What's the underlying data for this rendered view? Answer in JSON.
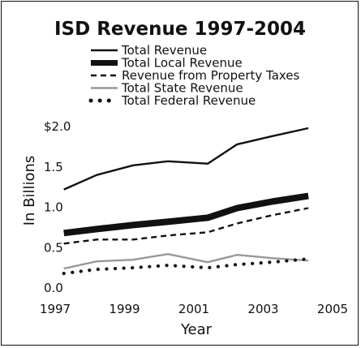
{
  "chart_data": {
    "type": "line",
    "title": "ISD Revenue 1997-2004",
    "xlabel": "Year",
    "ylabel": "In Billions",
    "xlim": [
      1997,
      2005
    ],
    "ylim": [
      0,
      2.0
    ],
    "x_ticks": [
      "1997",
      "1999",
      "2001",
      "2003",
      "2005"
    ],
    "x_tick_values": [
      1997,
      1999,
      2001,
      2003,
      2005
    ],
    "y_ticks": [
      "0.0",
      "0.5",
      "1.0",
      "1.5",
      "$2.0"
    ],
    "y_tick_values": [
      0,
      0.5,
      1.0,
      1.5,
      2.0
    ],
    "grid": false,
    "legend_position": "top",
    "x": [
      1997.25,
      1998.2,
      1999.25,
      2000.25,
      2001.4,
      2002.25,
      2003.25,
      2004.3
    ],
    "series": [
      {
        "name": "Total Revenue",
        "style": "solid-thin",
        "color": "#111111",
        "values": [
          1.22,
          1.4,
          1.52,
          1.57,
          1.54,
          1.78,
          1.88,
          1.98
        ]
      },
      {
        "name": "Total Local Revenue",
        "style": "solid-thick",
        "color": "#111111",
        "values": [
          0.68,
          0.73,
          0.78,
          0.82,
          0.87,
          0.99,
          1.07,
          1.14
        ]
      },
      {
        "name": "Revenue from Property Taxes",
        "style": "dashed",
        "color": "#111111",
        "values": [
          0.55,
          0.6,
          0.6,
          0.65,
          0.69,
          0.8,
          0.9,
          0.99
        ]
      },
      {
        "name": "Total State Revenue",
        "style": "solid-gray",
        "color": "#999999",
        "values": [
          0.24,
          0.33,
          0.35,
          0.42,
          0.32,
          0.41,
          0.37,
          0.34
        ]
      },
      {
        "name": "Total Federal Revenue",
        "style": "dotted",
        "color": "#111111",
        "values": [
          0.18,
          0.23,
          0.25,
          0.28,
          0.25,
          0.29,
          0.32,
          0.36
        ]
      }
    ]
  }
}
